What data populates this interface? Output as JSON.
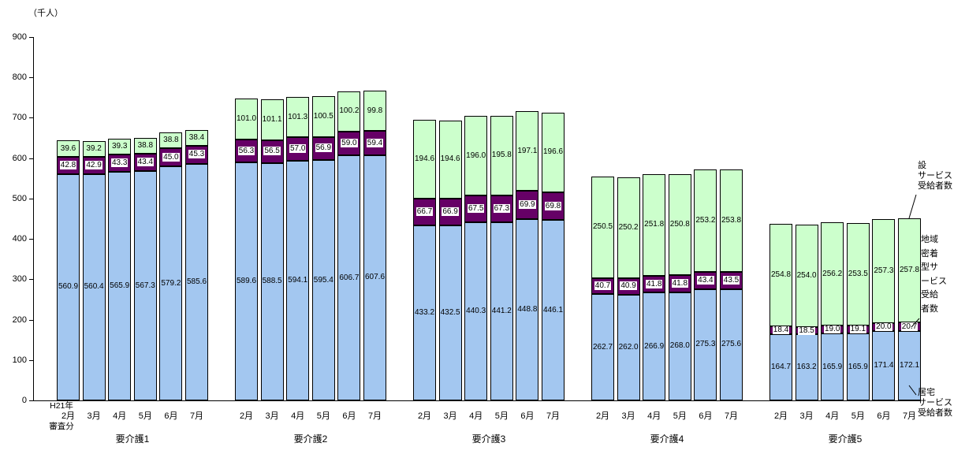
{
  "unit_label": "（千人）",
  "x_axis": {
    "year_label": "H21年",
    "note_label": "審査分",
    "months": [
      "2月",
      "3月",
      "4月",
      "5月",
      "6月",
      "7月"
    ]
  },
  "legend": {
    "facility_lines": [
      "設",
      "サービス",
      "受給者数"
    ],
    "community_lines": [
      "地域",
      "密着",
      "型サ",
      "ービス",
      "受給",
      "者数"
    ],
    "home_lines": [
      "居宅",
      "サービス",
      "受給者数"
    ]
  },
  "colors": {
    "home": "#A3C7F0",
    "community": "#660066",
    "facility": "#CCFFCC",
    "border": "#000000",
    "axis": "#000000"
  },
  "chart_data": {
    "type": "bar",
    "stacked": true,
    "unit": "（千人）",
    "ylim": [
      0,
      900
    ],
    "y_ticks": [
      0,
      100,
      200,
      300,
      400,
      500,
      600,
      700,
      800,
      900
    ],
    "grid": false,
    "months": [
      "2月",
      "3月",
      "4月",
      "5月",
      "6月",
      "7月"
    ],
    "series_order": [
      "home",
      "community",
      "facility"
    ],
    "series_labels": {
      "home": "居宅サービス受給者数",
      "community": "地域密着型サービス受給者数",
      "facility": "設サービス受給者数"
    },
    "groups": [
      {
        "label": "要介護1",
        "series": {
          "home": [
            560.9,
            560.4,
            565.9,
            567.3,
            579.2,
            585.6
          ],
          "community": [
            42.8,
            42.9,
            43.3,
            43.4,
            45.0,
            45.3
          ],
          "facility": [
            39.6,
            39.2,
            39.3,
            38.8,
            38.8,
            38.4
          ]
        }
      },
      {
        "label": "要介護2",
        "series": {
          "home": [
            589.6,
            588.5,
            594.1,
            595.4,
            606.7,
            607.6
          ],
          "community": [
            56.3,
            56.5,
            57.0,
            56.9,
            59.0,
            59.4
          ],
          "facility": [
            101.0,
            101.1,
            101.3,
            100.5,
            100.2,
            99.8
          ]
        }
      },
      {
        "label": "要介護3",
        "series": {
          "home": [
            433.2,
            432.5,
            440.3,
            441.2,
            448.8,
            446.1
          ],
          "community": [
            66.7,
            66.9,
            67.5,
            67.3,
            69.9,
            69.8
          ],
          "facility": [
            194.6,
            194.6,
            196.0,
            195.8,
            197.1,
            196.6
          ]
        }
      },
      {
        "label": "要介護4",
        "series": {
          "home": [
            262.7,
            262.0,
            266.9,
            268.0,
            275.3,
            275.6
          ],
          "community": [
            40.7,
            40.9,
            41.8,
            41.8,
            43.4,
            43.5
          ],
          "facility": [
            250.5,
            250.2,
            251.8,
            250.8,
            253.2,
            253.8
          ]
        }
      },
      {
        "label": "要介護5",
        "series": {
          "home": [
            164.7,
            163.2,
            165.9,
            165.9,
            171.4,
            172.1
          ],
          "community": [
            18.4,
            18.5,
            19.0,
            19.1,
            20.0,
            20.7
          ],
          "facility": [
            254.8,
            254.0,
            256.2,
            253.5,
            257.3,
            257.8
          ]
        }
      }
    ]
  }
}
